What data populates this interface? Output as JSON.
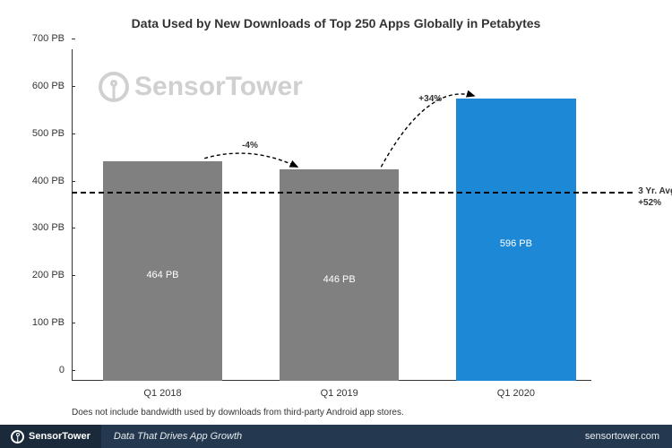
{
  "title": "Data Used by New Downloads of Top 250 Apps Globally in Petabytes",
  "watermark_text": "SensorTower",
  "chart": {
    "type": "bar",
    "ylim": [
      0,
      700
    ],
    "ytick_step": 100,
    "y_unit": "PB",
    "bars": [
      {
        "category": "Q1 2018",
        "value": 464,
        "label": "464 PB",
        "color": "#808080"
      },
      {
        "category": "Q1 2019",
        "value": 446,
        "label": "446 PB",
        "color": "#808080"
      },
      {
        "category": "Q1 2020",
        "value": 596,
        "label": "596 PB",
        "color": "#1c88d6"
      }
    ],
    "bar_width_pct": 23,
    "bar_positions_pct": [
      6,
      40,
      74
    ],
    "changes": [
      {
        "from": 0,
        "to": 1,
        "label": "-4%"
      },
      {
        "from": 1,
        "to": 2,
        "label": "+34%"
      }
    ],
    "avg_line_value": 400,
    "avg_label_l1": "3 Yr. Avg.",
    "avg_label_l2": "+52%",
    "background_color": "#ffffff",
    "axis_color": "#333333",
    "arrow_style": "dashed"
  },
  "footnote": "Does not include bandwidth used by downloads from third-party Android app stores.",
  "footer": {
    "brand": "SensorTower",
    "tagline": "Data That Drives App Growth",
    "url": "sensortower.com",
    "left_bg": "#1a2a3a",
    "right_bg": "#24394f"
  }
}
